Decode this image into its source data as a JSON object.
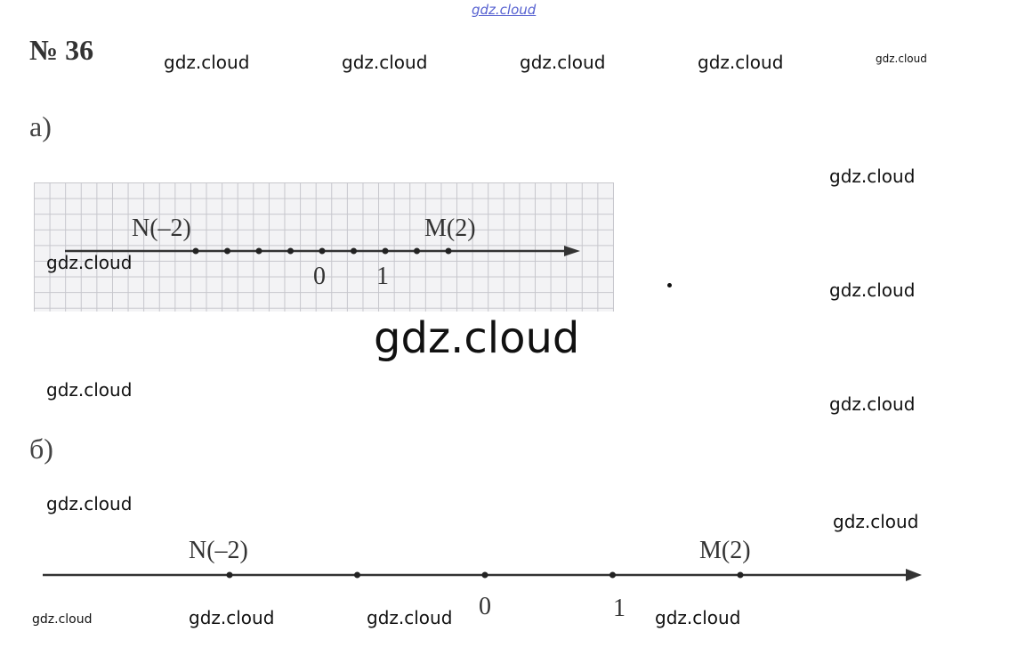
{
  "header_watermark": "gdz.cloud",
  "title": "№ 36",
  "watermarks": {
    "row1": [
      "gdz.cloud",
      "gdz.cloud",
      "gdz.cloud",
      "gdz.cloud",
      "gdz.cloud"
    ],
    "center": "gdz.cloud",
    "others": [
      "gdz.cloud",
      "gdz.cloud",
      "gdz.cloud",
      "gdz.cloud",
      "gdz.cloud",
      "gdz.cloud",
      "gdz.cloud",
      "gdz.cloud",
      "gdz.cloud",
      "gdz.cloud",
      "gdz.cloud"
    ]
  },
  "part_a": {
    "label": "а)",
    "point_n": "N(–2)",
    "point_m": "M(2)",
    "tick_0": "0",
    "tick_1": "1",
    "unit_note": "1 unit = 1 cell; points at -4..4"
  },
  "part_b": {
    "label": "б)",
    "point_n": "N(–2)",
    "point_m": "M(2)",
    "tick_0": "0",
    "tick_1": "1"
  }
}
